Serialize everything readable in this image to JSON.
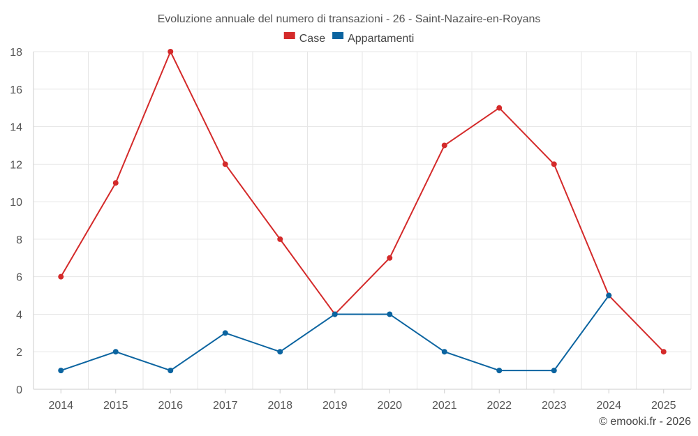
{
  "chart_data": {
    "type": "line",
    "title": "Evoluzione annuale del numero di transazioni - 26 - Saint-Nazaire-en-Royans",
    "xlabel": "",
    "ylabel": "",
    "x": [
      "2014",
      "2015",
      "2016",
      "2017",
      "2018",
      "2019",
      "2020",
      "2021",
      "2022",
      "2023",
      "2024",
      "2025"
    ],
    "ylim": [
      0,
      18
    ],
    "yticks": [
      "0",
      "2",
      "4",
      "6",
      "8",
      "10",
      "12",
      "14",
      "16",
      "18"
    ],
    "grid": true,
    "legend_position": "top-center",
    "series": [
      {
        "name": "Case",
        "color": "#d42a2a",
        "values": [
          6,
          11,
          18,
          12,
          8,
          4,
          7,
          13,
          15,
          12,
          5,
          2
        ]
      },
      {
        "name": "Appartamenti",
        "color": "#0b64a0",
        "values": [
          1,
          2,
          1,
          3,
          2,
          4,
          4,
          2,
          1,
          1,
          5,
          null
        ]
      }
    ]
  },
  "credit": "© emooki.fr - 2026"
}
